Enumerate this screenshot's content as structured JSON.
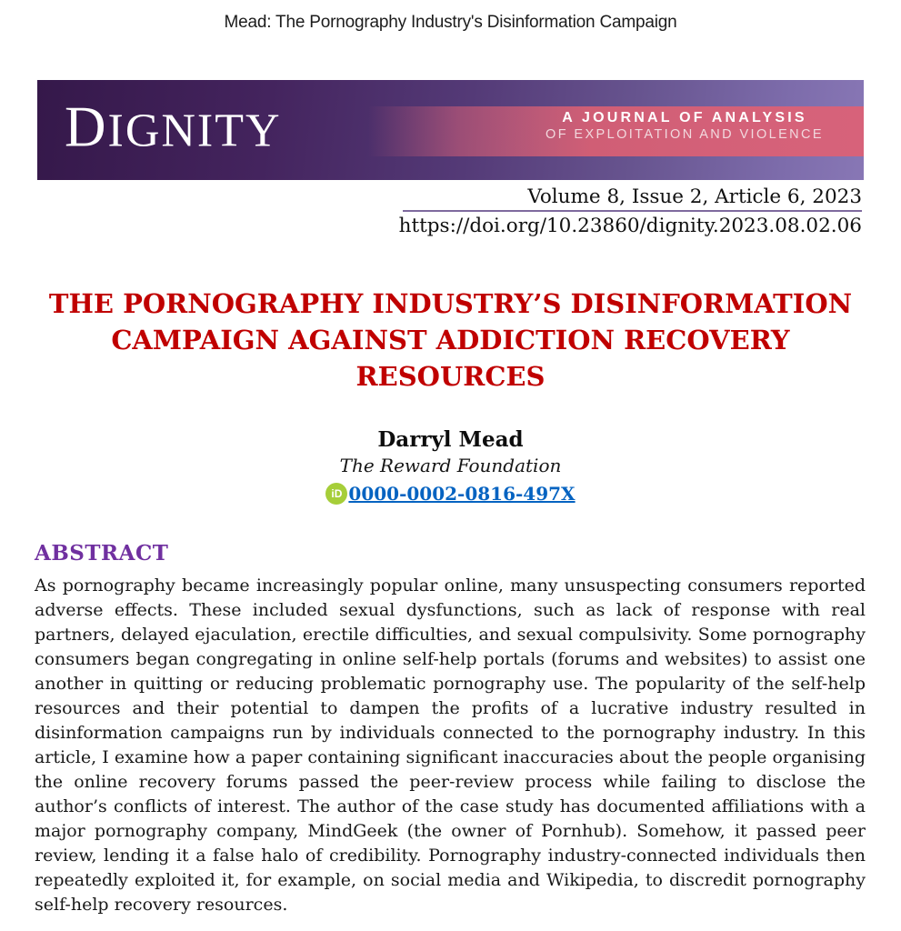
{
  "page": {
    "running_head": "Mead: The Pornography Industry's Disinformation Campaign"
  },
  "banner": {
    "logo_first": "D",
    "logo_rest": "IGNITY",
    "tagline_line1": "A JOURNAL OF ANALYSIS",
    "tagline_line2": "OF EXPLOITATION AND VIOLENCE",
    "colors": {
      "purple_dark": "#35184A",
      "purple_light": "#8877B5",
      "pink_stripe": "#D7627A"
    }
  },
  "citation": {
    "volume_line": "Volume 8, Issue 2, Article 6, 2023",
    "doi": "https://doi.org/10.23860/dignity.2023.08.02.06"
  },
  "article": {
    "title_lines": [
      "THE PORNOGRAPHY INDUSTRY’S DISINFORMATION",
      "CAMPAIGN AGAINST ADDICTION RECOVERY",
      "RESOURCES"
    ],
    "title_color": "#C00000",
    "author": "Darryl Mead",
    "affiliation": "The Reward Foundation",
    "orcid_icon_label": "iD",
    "orcid_icon_color": "#A6CE39",
    "orcid": "0000-0002-0816-497X",
    "link_color": "#0563C1"
  },
  "abstract": {
    "heading": "ABSTRACT",
    "heading_color": "#7030A0",
    "text": "As pornography became increasingly popular online, many unsuspecting consumers reported adverse effects. These included sexual dysfunctions, such as lack of response with real partners, delayed ejaculation, erectile difficulties, and sexual compulsivity. Some pornography consumers began congregating in online self-help portals (forums and websites) to assist one another in quitting or reducing problematic pornography use. The popularity of the self-help resources and their potential to dampen the profits of a lucrative industry resulted in disinformation campaigns run by individuals connected to the pornography industry. In this article, I examine how a paper containing significant inaccuracies about the people organising the online recovery forums passed the peer-review process while failing to disclose the author’s conflicts of interest. The author of the case study has documented affiliations with a major pornography company, MindGeek (the owner of Pornhub). Somehow, it passed peer review, lending it a false halo of credibility. Pornography industry-connected individuals then repeatedly exploited it, for example, on social media and Wikipedia, to discredit pornography self-help recovery resources."
  }
}
